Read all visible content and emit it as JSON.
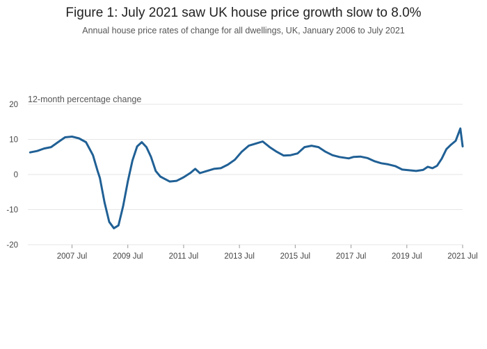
{
  "chart_data": {
    "type": "line",
    "title": "Figure 1: July 2021 saw UK house price growth slow to 8.0%",
    "subtitle": "Annual house price rates of change for all dwellings, UK, January 2006 to July 2021",
    "ylabel": "12-month percentage change",
    "xlabel": "",
    "ylim": [
      -20,
      20
    ],
    "yticks": [
      -20,
      -10,
      0,
      10,
      20
    ],
    "xlim": [
      "2006-01",
      "2021-07"
    ],
    "xticks": [
      {
        "at": "2007-07",
        "label": "2007 Jul"
      },
      {
        "at": "2009-07",
        "label": "2009 Jul"
      },
      {
        "at": "2011-07",
        "label": "2011 Jul"
      },
      {
        "at": "2013-07",
        "label": "2013 Jul"
      },
      {
        "at": "2015-07",
        "label": "2015 Jul"
      },
      {
        "at": "2017-07",
        "label": "2017 Jul"
      },
      {
        "at": "2019-07",
        "label": "2019 Jul"
      },
      {
        "at": "2021-07",
        "label": "2021 Jul"
      }
    ],
    "grid": true,
    "color": "#206095",
    "series": [
      {
        "points": [
          [
            "2006-01",
            6.3
          ],
          [
            "2006-04",
            6.7
          ],
          [
            "2006-07",
            7.4
          ],
          [
            "2006-10",
            7.8
          ],
          [
            "2007-01",
            9.2
          ],
          [
            "2007-04",
            10.6
          ],
          [
            "2007-07",
            10.8
          ],
          [
            "2007-10",
            10.3
          ],
          [
            "2008-01",
            9.2
          ],
          [
            "2008-04",
            5.5
          ],
          [
            "2008-06",
            1.0
          ],
          [
            "2008-07",
            -1.0
          ],
          [
            "2008-09",
            -8.0
          ],
          [
            "2008-11",
            -13.5
          ],
          [
            "2009-01",
            -15.3
          ],
          [
            "2009-03",
            -14.5
          ],
          [
            "2009-05",
            -9.0
          ],
          [
            "2009-07",
            -2.0
          ],
          [
            "2009-09",
            4.0
          ],
          [
            "2009-11",
            8.0
          ],
          [
            "2010-01",
            9.2
          ],
          [
            "2010-03",
            7.8
          ],
          [
            "2010-05",
            5.0
          ],
          [
            "2010-07",
            1.0
          ],
          [
            "2010-09",
            -0.6
          ],
          [
            "2010-11",
            -1.3
          ],
          [
            "2011-01",
            -2.0
          ],
          [
            "2011-04",
            -1.8
          ],
          [
            "2011-07",
            -0.8
          ],
          [
            "2011-10",
            0.5
          ],
          [
            "2011-12",
            1.6
          ],
          [
            "2012-02",
            0.4
          ],
          [
            "2012-05",
            1.0
          ],
          [
            "2012-08",
            1.6
          ],
          [
            "2012-11",
            1.8
          ],
          [
            "2013-02",
            2.8
          ],
          [
            "2013-05",
            4.2
          ],
          [
            "2013-08",
            6.5
          ],
          [
            "2013-11",
            8.2
          ],
          [
            "2014-02",
            8.8
          ],
          [
            "2014-05",
            9.4
          ],
          [
            "2014-08",
            7.8
          ],
          [
            "2014-11",
            6.5
          ],
          [
            "2015-02",
            5.4
          ],
          [
            "2015-05",
            5.5
          ],
          [
            "2015-08",
            6.0
          ],
          [
            "2015-11",
            7.8
          ],
          [
            "2016-02",
            8.2
          ],
          [
            "2016-05",
            7.8
          ],
          [
            "2016-08",
            6.5
          ],
          [
            "2016-11",
            5.5
          ],
          [
            "2017-02",
            5.0
          ],
          [
            "2017-04",
            4.8
          ],
          [
            "2017-06",
            4.6
          ],
          [
            "2017-08",
            5.0
          ],
          [
            "2017-11",
            5.1
          ],
          [
            "2018-02",
            4.7
          ],
          [
            "2018-05",
            3.8
          ],
          [
            "2018-08",
            3.2
          ],
          [
            "2018-11",
            2.9
          ],
          [
            "2019-02",
            2.4
          ],
          [
            "2019-05",
            1.4
          ],
          [
            "2019-08",
            1.2
          ],
          [
            "2019-11",
            1.0
          ],
          [
            "2020-02",
            1.3
          ],
          [
            "2020-04",
            2.2
          ],
          [
            "2020-06",
            1.8
          ],
          [
            "2020-08",
            2.5
          ],
          [
            "2020-10",
            4.5
          ],
          [
            "2020-12",
            7.2
          ],
          [
            "2021-02",
            8.5
          ],
          [
            "2021-04",
            9.6
          ],
          [
            "2021-06",
            13.1
          ],
          [
            "2021-07",
            8.0
          ]
        ]
      }
    ]
  }
}
